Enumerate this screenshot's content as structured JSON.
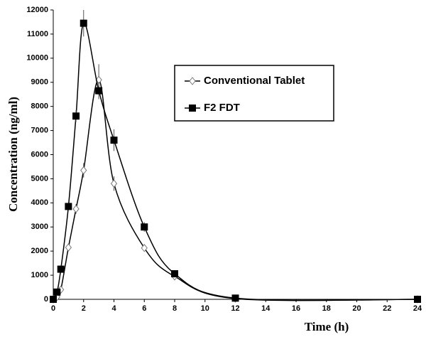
{
  "chart_data": {
    "type": "line",
    "x_label": "Time (h)",
    "y_label": "Concentration (ng/ml)",
    "x": [
      0,
      0.25,
      0.5,
      1,
      1.5,
      2,
      3,
      4,
      6,
      8,
      12,
      24
    ],
    "series": [
      {
        "name": "Conventional Tablet",
        "color": "#000000",
        "marker": "diamond",
        "values": [
          0,
          100,
          400,
          2150,
          3750,
          5350,
          9100,
          4800,
          2130,
          950,
          30,
          0
        ],
        "errors": [
          null,
          null,
          null,
          null,
          200,
          300,
          650,
          300,
          null,
          null,
          null,
          null
        ]
      },
      {
        "name": "F2 FDT",
        "color": "#000000",
        "marker": "square",
        "values": [
          0,
          300,
          1250,
          3850,
          7600,
          11450,
          8650,
          6600,
          3000,
          1060,
          50,
          0
        ],
        "errors": [
          null,
          null,
          null,
          null,
          250,
          550,
          350,
          450,
          200,
          null,
          null,
          null
        ]
      }
    ],
    "xlim": [
      0,
      24
    ],
    "xticks": [
      0,
      2,
      4,
      6,
      8,
      10,
      12,
      14,
      16,
      18,
      20,
      22,
      24
    ],
    "ylim": [
      0,
      12000
    ],
    "yticks": [
      0,
      1000,
      2000,
      3000,
      4000,
      5000,
      6000,
      7000,
      8000,
      9000,
      10000,
      11000,
      12000
    ],
    "grid": false,
    "legend": "upper right"
  }
}
